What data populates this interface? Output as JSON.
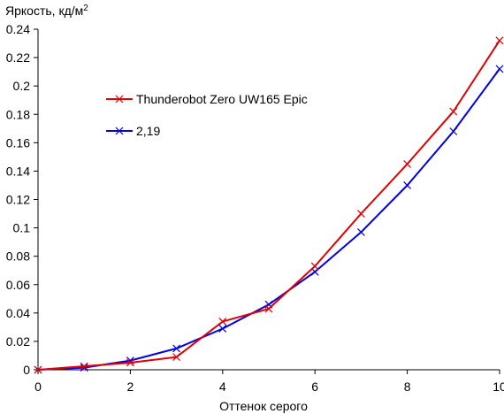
{
  "chart_data": {
    "type": "line",
    "ylabel": "Яркость, кд/м",
    "ylabel_sup": "2",
    "xlabel": "Оттенок серого",
    "xlim": [
      0,
      10
    ],
    "ylim": [
      0,
      0.24
    ],
    "xticks": [
      "0",
      "2",
      "4",
      "6",
      "8",
      "10"
    ],
    "yticks": [
      "0",
      "0.02",
      "0.04",
      "0.06",
      "0.08",
      "0.1",
      "0.12",
      "0.14",
      "0.16",
      "0.18",
      "0.2",
      "0.22",
      "0.24"
    ],
    "legend_position": "upper-left",
    "grid": false,
    "series": [
      {
        "name": "Thunderobot Zero UW165 Epic",
        "color": "#e00000",
        "marker": "x",
        "x": [
          0,
          1,
          2,
          3,
          4,
          5,
          6,
          7,
          8,
          9,
          10
        ],
        "y": [
          0.0,
          0.0025,
          0.005,
          0.009,
          0.034,
          0.043,
          0.073,
          0.11,
          0.145,
          0.182,
          0.232
        ]
      },
      {
        "name": "2,19",
        "color": "#0000e0",
        "marker": "x",
        "x": [
          0,
          1,
          2,
          3,
          4,
          5,
          6,
          7,
          8,
          9,
          10
        ],
        "y": [
          0.0,
          0.0015,
          0.0065,
          0.015,
          0.029,
          0.046,
          0.069,
          0.097,
          0.13,
          0.168,
          0.212
        ]
      }
    ]
  }
}
